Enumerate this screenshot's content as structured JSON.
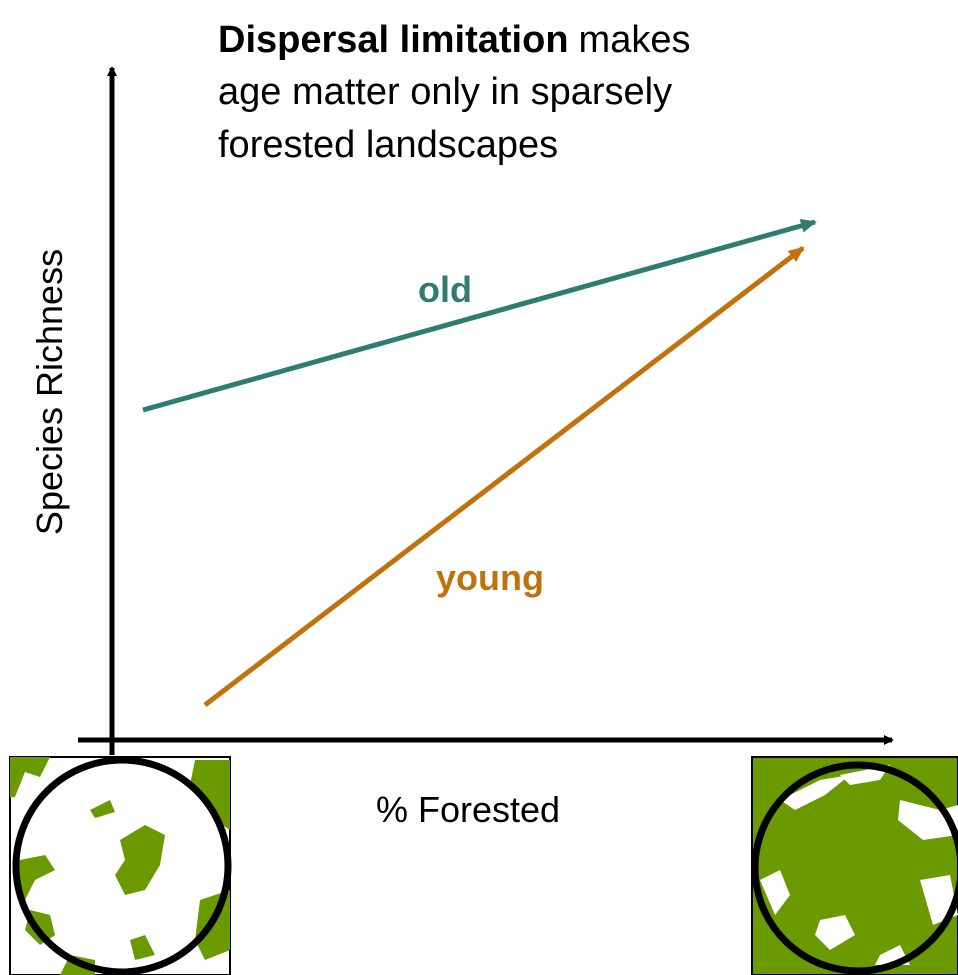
{
  "title": {
    "emphasis": "Dispersal limitation",
    "lines": [
      "makes",
      "age matter only in sparsely",
      "forested landscapes"
    ]
  },
  "axes": {
    "y_label": "Species Richness",
    "x_label": "% Forested"
  },
  "lines": [
    {
      "label": "old"
    },
    {
      "label": "young"
    }
  ]
}
